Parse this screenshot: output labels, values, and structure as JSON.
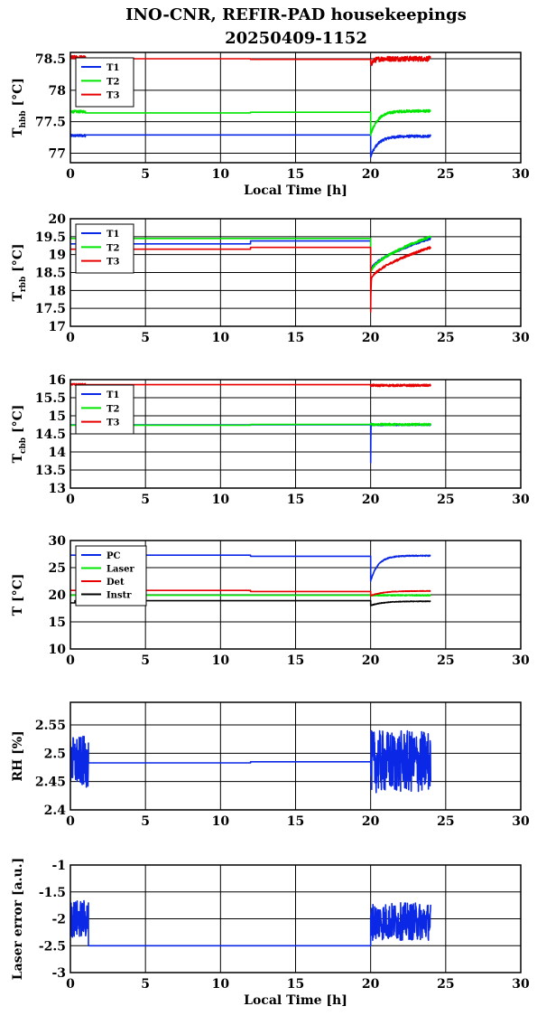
{
  "figure": {
    "title_line1": "INO-CNR, REFIR-PAD housekeepings",
    "title_line2": "20250409-1152"
  },
  "colors": {
    "blue": "#0a28e6",
    "green": "#00e600",
    "red": "#e60000",
    "black": "#000000"
  },
  "chart_data": [
    {
      "type": "line",
      "ylabel": "T_hbb [°C]",
      "ylabel_main": "T",
      "ylabel_sub": "hbb",
      "ylabel_tail": " [°C]",
      "xlabel": "Local Time [h]",
      "xlim": [
        0,
        30
      ],
      "ylim": [
        76.85,
        78.6
      ],
      "xticks": [
        0,
        5,
        10,
        15,
        20,
        25,
        30
      ],
      "yticks": [
        77,
        77.5,
        78,
        78.5
      ],
      "ytick_labels": [
        "77",
        "77.5",
        "78",
        "78.5"
      ],
      "grid": true,
      "legend_position": "top-left",
      "series": [
        {
          "name": "T1",
          "color": "blue",
          "segments": [
            {
              "x0": 0,
              "x1": 1,
              "y": 77.28,
              "noise": 0.02
            },
            {
              "x0": 1,
              "x1": 12,
              "y": 77.29,
              "noise": 0.0
            },
            {
              "x0": 12,
              "x1": 20,
              "y": 77.29,
              "noise": 0.0
            },
            {
              "x0": 20,
              "x1": 24,
              "y_start": 76.95,
              "y": 77.27,
              "tau": 0.5,
              "noise": 0.02
            }
          ]
        },
        {
          "name": "T2",
          "color": "green",
          "segments": [
            {
              "x0": 0,
              "x1": 1,
              "y": 77.66,
              "noise": 0.02
            },
            {
              "x0": 1,
              "x1": 12,
              "y": 77.64,
              "noise": 0.0
            },
            {
              "x0": 12,
              "x1": 20,
              "y": 77.65,
              "noise": 0.0
            },
            {
              "x0": 20,
              "x1": 24,
              "y_start": 77.3,
              "y": 77.67,
              "tau": 0.5,
              "noise": 0.02
            }
          ]
        },
        {
          "name": "T3",
          "color": "red",
          "segments": [
            {
              "x0": 0,
              "x1": 1,
              "y": 78.52,
              "noise": 0.03
            },
            {
              "x0": 1,
              "x1": 12,
              "y": 78.5,
              "noise": 0.0
            },
            {
              "x0": 12,
              "x1": 20,
              "y": 78.49,
              "noise": 0.0
            },
            {
              "x0": 20,
              "x1": 24,
              "y_start": 78.4,
              "y": 78.5,
              "tau": 0.2,
              "noise": 0.04
            }
          ]
        }
      ]
    },
    {
      "type": "line",
      "ylabel": "T_rbb [°C]",
      "ylabel_main": "T",
      "ylabel_sub": "rbb",
      "ylabel_tail": " [°C]",
      "xlabel": "",
      "xlim": [
        0,
        30
      ],
      "ylim": [
        17,
        20
      ],
      "xticks": [
        0,
        5,
        10,
        15,
        20,
        25,
        30
      ],
      "yticks": [
        17,
        17.5,
        18,
        18.5,
        19,
        19.5,
        20
      ],
      "ytick_labels": [
        "17",
        "17.5",
        "18",
        "18.5",
        "19",
        "19.5",
        "20"
      ],
      "grid": true,
      "legend_position": "top-left",
      "series": [
        {
          "name": "T1",
          "color": "blue",
          "segments": [
            {
              "x0": 0,
              "x1": 12,
              "y": 19.3,
              "noise": 0.0
            },
            {
              "x0": 12,
              "x1": 20,
              "y": 19.38,
              "noise": 0.0
            },
            {
              "x0": 20,
              "x1": 24,
              "y_start": 18.55,
              "y": 19.45,
              "ramp": true,
              "noise": 0.03
            }
          ]
        },
        {
          "name": "T2",
          "color": "green",
          "segments": [
            {
              "x0": 0,
              "x1": 20,
              "y": 19.45,
              "noise": 0.0
            },
            {
              "x0": 20,
              "x1": 24,
              "y_start": 18.5,
              "y": 19.5,
              "ramp": true,
              "noise": 0.03
            }
          ]
        },
        {
          "name": "T3",
          "color": "red",
          "segments": [
            {
              "x0": 0,
              "x1": 12,
              "y": 19.15,
              "noise": 0.0
            },
            {
              "x0": 12,
              "x1": 20,
              "y": 19.2,
              "noise": 0.0
            },
            {
              "x0": 20,
              "x1": 20.05,
              "y_start": 17.4,
              "y": 18.3,
              "ramp": true,
              "noise": 0.0
            },
            {
              "x0": 20.05,
              "x1": 24,
              "y_start": 18.3,
              "y": 19.2,
              "ramp": true,
              "noise": 0.03
            }
          ]
        }
      ]
    },
    {
      "type": "line",
      "ylabel": "T_cbb [°C]",
      "ylabel_main": "T",
      "ylabel_sub": "cbb",
      "ylabel_tail": " [°C]",
      "xlabel": "",
      "xlim": [
        0,
        30
      ],
      "ylim": [
        13,
        16
      ],
      "xticks": [
        0,
        5,
        10,
        15,
        20,
        25,
        30
      ],
      "yticks": [
        13,
        13.5,
        14,
        14.5,
        15,
        15.5,
        16
      ],
      "ytick_labels": [
        "13",
        "13.5",
        "14",
        "14.5",
        "15",
        "15.5",
        "16"
      ],
      "grid": true,
      "legend_position": "top-left",
      "series": [
        {
          "name": "T1",
          "color": "blue",
          "segments": [
            {
              "x0": 0,
              "x1": 20,
              "y": 14.75,
              "noise": 0.0
            },
            {
              "x0": 20,
              "x1": 20.03,
              "y_start": 13.7,
              "y": 14.8,
              "ramp": true,
              "noise": 0.0
            },
            {
              "x0": 20.03,
              "x1": 24,
              "y": 14.75,
              "noise": 0.02
            }
          ]
        },
        {
          "name": "T2",
          "color": "green",
          "segments": [
            {
              "x0": 0,
              "x1": 12,
              "y": 14.74,
              "noise": 0.0
            },
            {
              "x0": 12,
              "x1": 20,
              "y": 14.76,
              "noise": 0.0
            },
            {
              "x0": 20,
              "x1": 24,
              "y": 14.76,
              "noise": 0.03
            }
          ]
        },
        {
          "name": "T3",
          "color": "red",
          "segments": [
            {
              "x0": 0,
              "x1": 1,
              "y": 15.87,
              "noise": 0.02
            },
            {
              "x0": 1,
              "x1": 20,
              "y": 15.86,
              "noise": 0.0
            },
            {
              "x0": 20,
              "x1": 24,
              "y": 15.84,
              "noise": 0.03
            }
          ]
        }
      ]
    },
    {
      "type": "line",
      "ylabel": "T [°C]",
      "ylabel_main": "T [°C]",
      "ylabel_sub": "",
      "ylabel_tail": "",
      "xlabel": "",
      "xlim": [
        0,
        30
      ],
      "ylim": [
        10,
        30
      ],
      "xticks": [
        0,
        5,
        10,
        15,
        20,
        25,
        30
      ],
      "yticks": [
        10,
        15,
        20,
        25,
        30
      ],
      "ytick_labels": [
        "10",
        "15",
        "20",
        "25",
        "30"
      ],
      "grid": true,
      "legend_position": "top-left",
      "series": [
        {
          "name": "PC",
          "color": "blue",
          "segments": [
            {
              "x0": 0,
              "x1": 12,
              "y": 27.3,
              "noise": 0.0
            },
            {
              "x0": 12,
              "x1": 20,
              "y": 27.1,
              "noise": 0.0
            },
            {
              "x0": 20,
              "x1": 24,
              "y_start": 22.5,
              "y": 27.2,
              "tau": 0.5,
              "noise": 0.1
            }
          ]
        },
        {
          "name": "Laser",
          "color": "green",
          "segments": [
            {
              "x0": 0,
              "x1": 20,
              "y": 19.9,
              "noise": 0.0
            },
            {
              "x0": 20,
              "x1": 24,
              "y": 19.9,
              "noise": 0.1
            }
          ]
        },
        {
          "name": "Det",
          "color": "red",
          "segments": [
            {
              "x0": 0,
              "x1": 12,
              "y": 20.8,
              "noise": 0.0
            },
            {
              "x0": 12,
              "x1": 20,
              "y": 20.6,
              "noise": 0.0
            },
            {
              "x0": 20,
              "x1": 24,
              "y_start": 19.8,
              "y": 20.7,
              "tau": 0.8,
              "noise": 0.05
            }
          ]
        },
        {
          "name": "Instr",
          "color": "black",
          "segments": [
            {
              "x0": 0,
              "x1": 0.3,
              "y": 18.5,
              "noise": 0.0
            },
            {
              "x0": 0.3,
              "x1": 20,
              "y": 18.9,
              "noise": 0.0
            },
            {
              "x0": 20,
              "x1": 24,
              "y_start": 18.0,
              "y": 18.8,
              "tau": 0.8,
              "noise": 0.05
            }
          ]
        }
      ]
    },
    {
      "type": "line",
      "ylabel": "RH [%]",
      "ylabel_main": "RH [%]",
      "ylabel_sub": "",
      "ylabel_tail": "",
      "xlabel": "",
      "xlim": [
        0,
        30
      ],
      "ylim": [
        2.4,
        2.59
      ],
      "xticks": [
        0,
        5,
        10,
        15,
        20,
        25,
        30
      ],
      "yticks": [
        2.4,
        2.45,
        2.5,
        2.55
      ],
      "ytick_labels": [
        "2.4",
        "2.45",
        "2.5",
        "2.55"
      ],
      "grid": true,
      "legend_position": "none",
      "series": [
        {
          "name": "",
          "color": "blue",
          "segments": [
            {
              "x0": 0,
              "x1": 1.2,
              "y": 2.485,
              "noise": 0.045
            },
            {
              "x0": 1.2,
              "x1": 12,
              "y": 2.483,
              "noise": 0.0
            },
            {
              "x0": 12,
              "x1": 20,
              "y": 2.485,
              "noise": 0.0
            },
            {
              "x0": 20,
              "x1": 24,
              "y": 2.485,
              "noise": 0.055
            }
          ]
        }
      ]
    },
    {
      "type": "line",
      "ylabel": "Laser error [a.u.]",
      "ylabel_main": "Laser error [a.u.]",
      "ylabel_sub": "",
      "ylabel_tail": "",
      "xlabel": "Local Time [h]",
      "xlim": [
        0,
        30
      ],
      "ylim": [
        -3,
        -1
      ],
      "xticks": [
        0,
        5,
        10,
        15,
        20,
        25,
        30
      ],
      "yticks": [
        -3,
        -2.5,
        -2,
        -1.5,
        -1
      ],
      "ytick_labels": [
        "-3",
        "-2.5",
        "-2",
        "-1.5",
        "-1"
      ],
      "grid": true,
      "legend_position": "none",
      "series": [
        {
          "name": "",
          "color": "blue",
          "segments": [
            {
              "x0": 0,
              "x1": 1.2,
              "y": -2.0,
              "noise": 0.35
            },
            {
              "x0": 1.2,
              "x1": 20,
              "y": -2.5,
              "noise": 0.0
            },
            {
              "x0": 20,
              "x1": 24,
              "y": -2.05,
              "noise": 0.35
            }
          ]
        }
      ]
    }
  ]
}
